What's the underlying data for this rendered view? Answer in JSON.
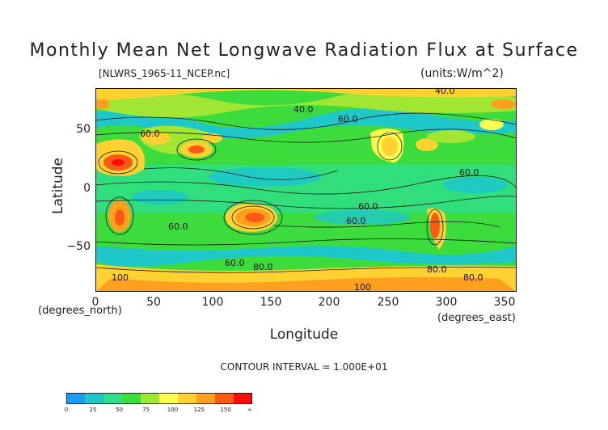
{
  "title": "Monthly Mean Net Longwave Radiation Flux at Surface",
  "file_label": "[NLWRS_1965-11_NCEP.nc]",
  "units_label": "(units:W/m^2)",
  "x_axis": {
    "label": "Longitude",
    "unit_note": "(degrees_east)",
    "ticks": [
      "0",
      "50",
      "100",
      "150",
      "200",
      "250",
      "300",
      "350"
    ],
    "range": [
      0,
      360
    ]
  },
  "y_axis": {
    "label": "Latitude",
    "unit_note": "(degrees_north)",
    "ticks": [
      "50",
      "0",
      "−50"
    ],
    "range": [
      -90,
      90
    ]
  },
  "contour_interval": "CONTOUR INTERVAL = 1.000E+01",
  "contour_labels": [
    "40.0",
    "40.0",
    "60.0",
    "60.0",
    "60.0",
    "60.0",
    "60.0",
    "60.0",
    "60.0",
    "80.0",
    "80.0",
    "80.0",
    "100",
    "100"
  ],
  "colorbar": {
    "ticks": [
      "0",
      "25",
      "50",
      "75",
      "100",
      "125",
      "150",
      "∞"
    ],
    "colors": [
      "#1e9bf0",
      "#1ec8c8",
      "#2ede8c",
      "#3cdc3c",
      "#a0e632",
      "#ffff50",
      "#ffd232",
      "#ffa01e",
      "#ff5a14",
      "#ff0a0a"
    ]
  },
  "colors": {
    "ocean_base": "#3cdc3c",
    "low": "#1ec8c8",
    "mid": "#a0e632",
    "high": "#ffd232",
    "very_high": "#ff5a14"
  }
}
